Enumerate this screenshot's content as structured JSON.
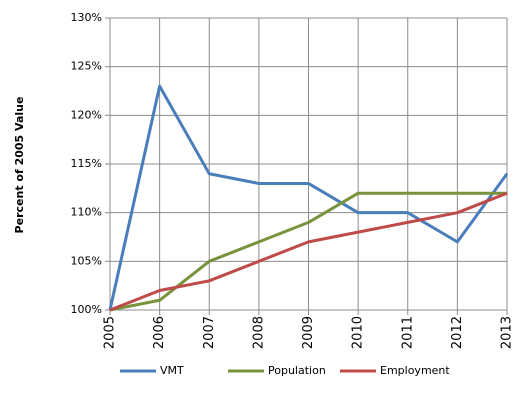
{
  "chart_data": {
    "type": "line",
    "ylabel": "Percent of 2005 Value",
    "categories": [
      "2005",
      "2006",
      "2007",
      "2008",
      "2009",
      "2010",
      "2011",
      "2012",
      "2013"
    ],
    "series": [
      {
        "name": "VMT",
        "color": "#4a7ebb",
        "values": [
          100,
          123,
          114,
          113,
          113,
          110,
          110,
          107,
          114
        ]
      },
      {
        "name": "Population",
        "color": "#77933c",
        "values": [
          100,
          101,
          105,
          107,
          109,
          112,
          112,
          112,
          112
        ]
      },
      {
        "name": "Employment",
        "color": "#be4b48",
        "values": [
          100,
          102,
          103,
          105,
          107,
          108,
          109,
          110,
          112
        ]
      }
    ],
    "ylim": [
      100,
      130
    ],
    "yticks": [
      {
        "value": 100,
        "label": "100%"
      },
      {
        "value": 105,
        "label": "105%"
      },
      {
        "value": 110,
        "label": "110%"
      },
      {
        "value": 115,
        "label": "115%"
      },
      {
        "value": 120,
        "label": "120%"
      },
      {
        "value": 125,
        "label": "125%"
      },
      {
        "value": 130,
        "label": "130%"
      }
    ],
    "grid": true,
    "legend": "bottom"
  }
}
